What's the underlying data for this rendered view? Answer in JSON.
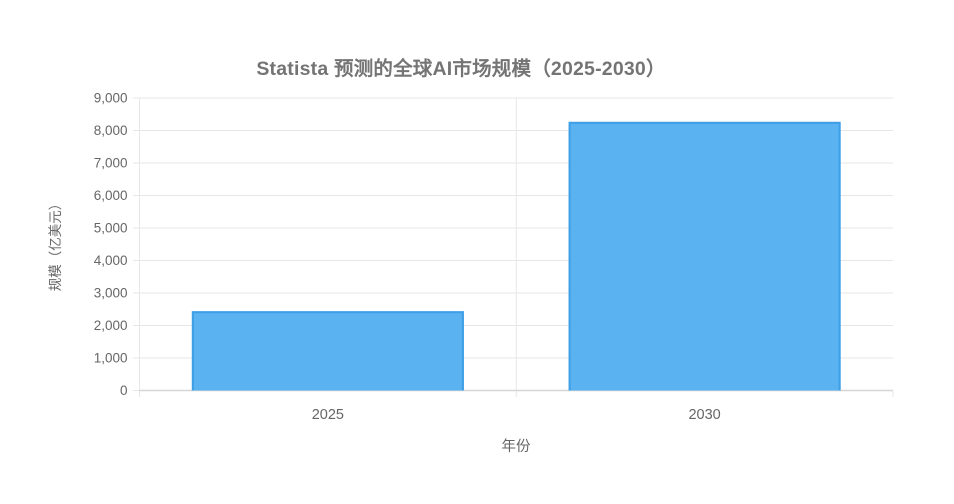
{
  "chart_data": {
    "type": "bar",
    "title": "Statista 预测的全球AI市场规模（2025-2030）",
    "xlabel": "年份",
    "ylabel": "规模（亿美元）",
    "categories": [
      "2025",
      "2030"
    ],
    "values": [
      2440,
      8267
    ],
    "ylim": [
      0,
      9000
    ],
    "ytick_step": 1000,
    "ytick_labels": [
      "0",
      "1,000",
      "2,000",
      "3,000",
      "4,000",
      "5,000",
      "6,000",
      "7,000",
      "8,000",
      "9,000"
    ],
    "grid": "on",
    "legend": "none",
    "colors": {
      "bar_fill": "#5BB2F0",
      "bar_border": "#3E9FE6",
      "gridline": "#e7e7e7",
      "axis_line": "#d6d6d6",
      "tick_label": "#666666",
      "title": "#747474"
    }
  }
}
